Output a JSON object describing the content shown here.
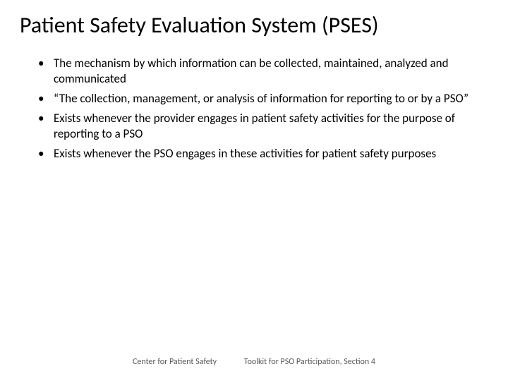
{
  "slide": {
    "title": "Patient Safety Evaluation System (PSES)",
    "title_fontsize": 32,
    "title_color": "#000000",
    "bullets": [
      "The mechanism by which information can be collected, maintained, analyzed and communicated",
      "“The collection, management, or analysis of information for reporting to or by a PSO”",
      "Exists whenever the provider engages in patient safety activities for the purpose of reporting to a PSO",
      "Exists whenever the PSO engages in these activities for patient safety purposes"
    ],
    "bullet_fontsize": 17,
    "bullet_color": "#000000",
    "footer_left": "Center for Patient Safety",
    "footer_right": "Toolkit for PSO Participation, Section 4",
    "footer_fontsize": 12,
    "footer_color": "#595959",
    "background_color": "#ffffff"
  }
}
